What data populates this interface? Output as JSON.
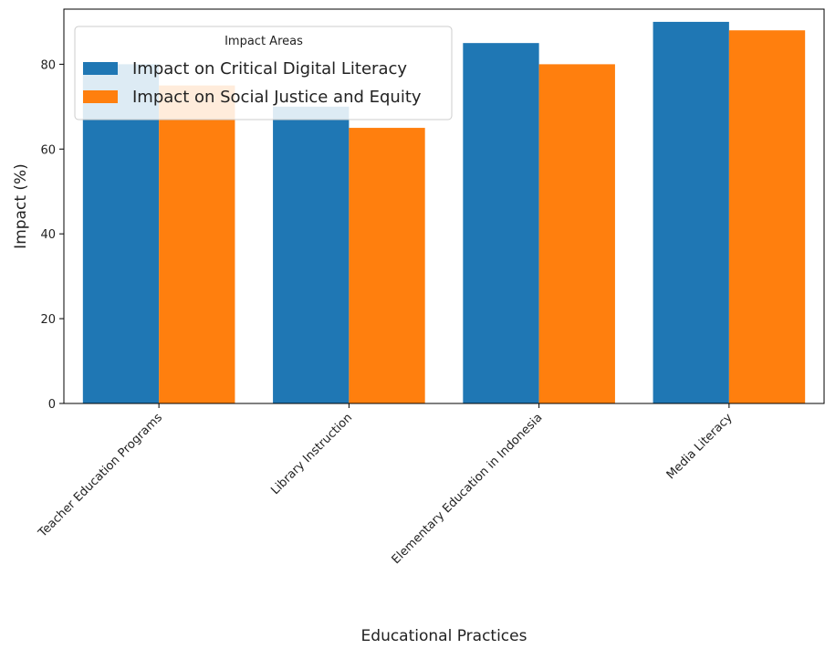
{
  "chart_data": {
    "type": "bar",
    "title": "",
    "xlabel": "Educational Practices",
    "ylabel": "Impact (%)",
    "ylim": [
      0,
      93
    ],
    "yticks": [
      0,
      20,
      40,
      60,
      80
    ],
    "categories": [
      "Teacher Education Programs",
      "Library Instruction",
      "Elementary Education in Indonesia",
      "Media Literacy"
    ],
    "series": [
      {
        "name": "Impact on Critical Digital Literacy",
        "values": [
          80,
          70,
          85,
          90
        ],
        "color": "#1f77b4"
      },
      {
        "name": "Impact on Social Justice and Equity",
        "values": [
          75,
          65,
          80,
          88
        ],
        "color": "#ff7f0e"
      }
    ],
    "legend": {
      "title": "Impact Areas",
      "placement": "top-left"
    },
    "grid": false
  }
}
